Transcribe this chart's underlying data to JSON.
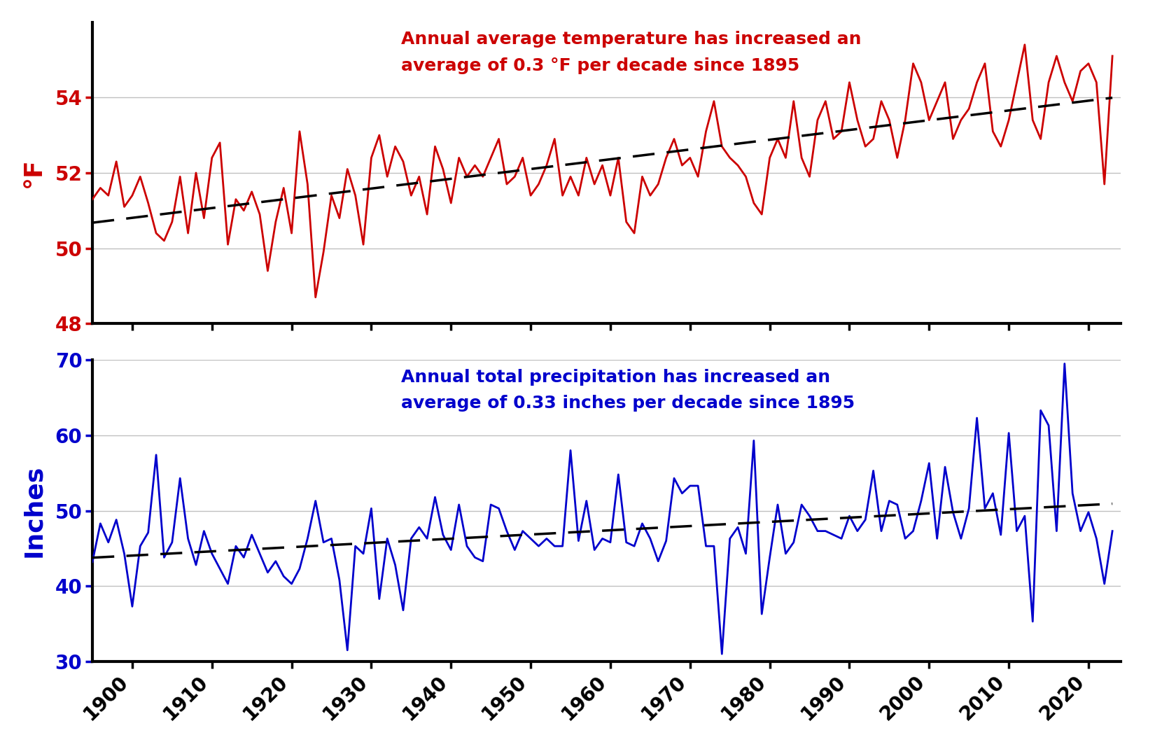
{
  "years": [
    1895,
    1896,
    1897,
    1898,
    1899,
    1900,
    1901,
    1902,
    1903,
    1904,
    1905,
    1906,
    1907,
    1908,
    1909,
    1910,
    1911,
    1912,
    1913,
    1914,
    1915,
    1916,
    1917,
    1918,
    1919,
    1920,
    1921,
    1922,
    1923,
    1924,
    1925,
    1926,
    1927,
    1928,
    1929,
    1930,
    1931,
    1932,
    1933,
    1934,
    1935,
    1936,
    1937,
    1938,
    1939,
    1940,
    1941,
    1942,
    1943,
    1944,
    1945,
    1946,
    1947,
    1948,
    1949,
    1950,
    1951,
    1952,
    1953,
    1954,
    1955,
    1956,
    1957,
    1958,
    1959,
    1960,
    1961,
    1962,
    1963,
    1964,
    1965,
    1966,
    1967,
    1968,
    1969,
    1970,
    1971,
    1972,
    1973,
    1974,
    1975,
    1976,
    1977,
    1978,
    1979,
    1980,
    1981,
    1982,
    1983,
    1984,
    1985,
    1986,
    1987,
    1988,
    1989,
    1990,
    1991,
    1992,
    1993,
    1994,
    1995,
    1996,
    1997,
    1998,
    1999,
    2000,
    2001,
    2002,
    2003,
    2004,
    2005,
    2006,
    2007,
    2008,
    2009,
    2010,
    2011,
    2012,
    2013,
    2014,
    2015,
    2016,
    2017,
    2018,
    2019,
    2020,
    2021,
    2022,
    2023
  ],
  "temp": [
    51.3,
    51.6,
    51.4,
    52.3,
    51.1,
    51.4,
    51.9,
    51.2,
    50.4,
    50.2,
    50.7,
    51.9,
    50.4,
    52.0,
    50.8,
    52.4,
    52.8,
    50.1,
    51.3,
    51.0,
    51.5,
    50.9,
    49.4,
    50.7,
    51.6,
    50.4,
    53.1,
    51.7,
    48.7,
    49.9,
    51.4,
    50.8,
    52.1,
    51.4,
    50.1,
    52.4,
    53.0,
    51.9,
    52.7,
    52.3,
    51.4,
    51.9,
    50.9,
    52.7,
    52.1,
    51.2,
    52.4,
    51.9,
    52.2,
    51.9,
    52.4,
    52.9,
    51.7,
    51.9,
    52.4,
    51.4,
    51.7,
    52.2,
    52.9,
    51.4,
    51.9,
    51.4,
    52.4,
    51.7,
    52.2,
    51.4,
    52.4,
    50.7,
    50.4,
    51.9,
    51.4,
    51.7,
    52.4,
    52.9,
    52.2,
    52.4,
    51.9,
    53.1,
    53.9,
    52.7,
    52.4,
    52.2,
    51.9,
    51.2,
    50.9,
    52.4,
    52.9,
    52.4,
    53.9,
    52.4,
    51.9,
    53.4,
    53.9,
    52.9,
    53.1,
    54.4,
    53.4,
    52.7,
    52.9,
    53.9,
    53.4,
    52.4,
    53.4,
    54.9,
    54.4,
    53.4,
    53.9,
    54.4,
    52.9,
    53.4,
    53.7,
    54.4,
    54.9,
    53.1,
    52.7,
    53.4,
    54.4,
    55.4,
    53.4,
    52.9,
    54.4,
    55.1,
    54.4,
    53.9,
    54.7,
    54.9,
    54.4,
    51.7,
    55.1
  ],
  "precip": [
    43.2,
    48.3,
    45.8,
    48.8,
    44.3,
    37.3,
    45.3,
    47.1,
    57.4,
    43.8,
    45.8,
    54.3,
    46.3,
    42.8,
    47.3,
    44.3,
    42.3,
    40.3,
    45.3,
    43.8,
    46.8,
    44.3,
    41.8,
    43.3,
    41.3,
    40.3,
    42.3,
    46.3,
    51.3,
    45.8,
    46.3,
    40.8,
    31.5,
    45.3,
    44.3,
    50.3,
    38.3,
    46.3,
    42.8,
    36.8,
    46.3,
    47.8,
    46.3,
    51.8,
    46.8,
    44.8,
    50.8,
    45.3,
    43.8,
    43.3,
    50.8,
    50.3,
    47.3,
    44.8,
    47.3,
    46.3,
    45.3,
    46.3,
    45.3,
    45.3,
    58.0,
    46.0,
    51.3,
    44.8,
    46.3,
    45.8,
    54.8,
    45.8,
    45.3,
    48.3,
    46.3,
    43.3,
    46.0,
    54.3,
    52.3,
    53.3,
    53.3,
    45.3,
    45.3,
    31.0,
    46.3,
    47.8,
    44.3,
    59.3,
    36.3,
    43.8,
    50.8,
    44.3,
    45.8,
    50.8,
    49.3,
    47.3,
    47.3,
    46.8,
    46.3,
    49.3,
    47.3,
    48.8,
    55.3,
    47.3,
    51.3,
    50.8,
    46.3,
    47.3,
    51.3,
    56.3,
    46.3,
    55.8,
    49.8,
    46.3,
    50.3,
    62.3,
    50.3,
    52.3,
    46.8,
    60.3,
    47.3,
    49.3,
    35.3,
    63.3,
    61.3,
    47.3,
    69.5,
    52.3,
    47.3,
    49.8,
    46.3,
    40.3,
    47.3
  ],
  "temp_color": "#cc0000",
  "precip_color": "#0000cc",
  "trend_color": "black",
  "background_color": "#ffffff",
  "grid_color": "#c0c0c0",
  "temp_ylabel": "°F",
  "precip_ylabel": "Inches",
  "temp_ylim": [
    48,
    56
  ],
  "precip_ylim": [
    30,
    70
  ],
  "temp_yticks": [
    48,
    50,
    52,
    54
  ],
  "precip_yticks": [
    30,
    40,
    50,
    60,
    70
  ],
  "xlim": [
    1895,
    2024
  ],
  "xticks": [
    1900,
    1910,
    1920,
    1930,
    1940,
    1950,
    1960,
    1970,
    1980,
    1990,
    2000,
    2010,
    2020
  ],
  "temp_annotation": "Annual average temperature has increased an\naverage of 0.3 °F per decade since 1895",
  "precip_annotation": "Annual total precipitation has increased an\naverage of 0.33 inches per decade since 1895",
  "line_width": 2.0,
  "trend_linewidth": 2.5,
  "tick_fontsize": 20,
  "annotation_fontsize": 18,
  "ylabel_fontsize": 26,
  "axis_linewidth": 3.0
}
